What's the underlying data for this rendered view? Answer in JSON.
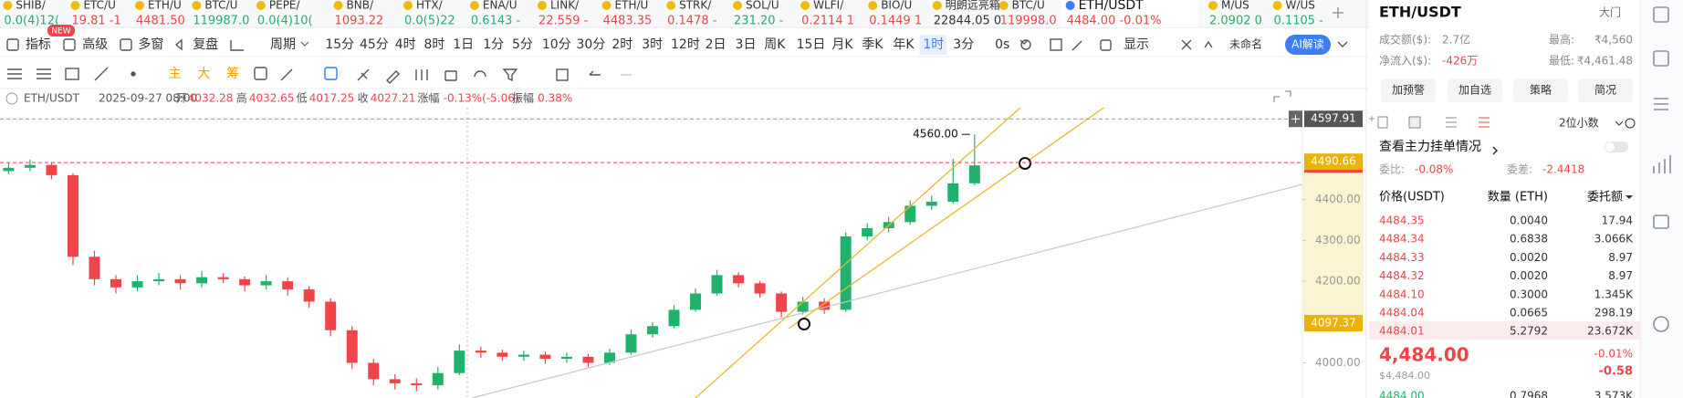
{
  "ticker": [
    {
      "name": "SHIB/",
      "price": "0.0(4)12(",
      "color": "#20b26c"
    },
    {
      "name": "ETC/U",
      "price": "19.81 -1",
      "color": "#ef454a"
    },
    {
      "name": "ETH/U",
      "price": "4481.50",
      "color": "#ef454a"
    },
    {
      "name": "BTC/U",
      "price": "119987.0",
      "color": "#20b26c"
    },
    {
      "name": "PEPE/",
      "price": "0.0(4)10(",
      "color": "#20b26c"
    },
    {
      "name": "BNB/",
      "price": "1093.22",
      "color": "#ef454a"
    },
    {
      "name": "HTX/",
      "price": "0.0(5)22",
      "color": "#20b26c"
    },
    {
      "name": "ENA/U",
      "price": "0.6143 -",
      "color": "#20b26c"
    },
    {
      "name": "LINK/",
      "price": "22.559 -",
      "color": "#ef454a"
    },
    {
      "name": "ETH/U",
      "price": "4483.35",
      "color": "#ef454a"
    },
    {
      "name": "STRK/",
      "price": "0.1478 -",
      "color": "#ef454a"
    },
    {
      "name": "SOL/U",
      "price": "231.20 -",
      "color": "#20b26c"
    },
    {
      "name": "WLFI/",
      "price": "0.2114 1",
      "color": "#ef454a"
    },
    {
      "name": "BIO/U",
      "price": "0.1449 1",
      "color": "#ef454a"
    },
    {
      "name": "明朗远亮箱",
      "price": "22844.05 0",
      "color": "#333333"
    },
    {
      "name": "BTC/U",
      "price": "119998.0",
      "color": "#ef454a"
    },
    {
      "name": "ETH/USDT",
      "price": "4484.00 -0.01%",
      "color": "#ef454a"
    },
    {
      "name": "M/US",
      "price": "2.0902 0",
      "color": "#20b26c"
    },
    {
      "name": "W/US",
      "price": "0.1105 -",
      "color": "#20b26c"
    }
  ],
  "ticker_active": 16,
  "ticker_badge": "NEW",
  "toolbar": {
    "tools": [
      "指标",
      "高级",
      "多窗",
      "复盘"
    ],
    "period_menu": "周期",
    "periods": [
      "15分",
      "45分",
      "4时",
      "8时",
      "1日",
      "1分",
      "5分",
      "10分",
      "30分",
      "2时",
      "3时",
      "12时",
      "2日",
      "3日",
      "周K",
      "15日",
      "月K",
      "季K",
      "年K",
      "1时",
      "3分",
      "0s"
    ],
    "active_period": 19,
    "display": "显示",
    "layout_name": "未命名",
    "ai": "AI解读"
  },
  "draw_tools": [
    "主",
    "大",
    "筹"
  ],
  "info": {
    "symbol": "ETH/USDT",
    "time": "2025-09-27 08:00",
    "fields": [
      {
        "label": "开",
        "value": "4032.28"
      },
      {
        "label": "高",
        "value": "4032.65"
      },
      {
        "label": "低",
        "value": "4017.25"
      },
      {
        "label": "收",
        "value": "4027.21"
      },
      {
        "label": "涨幅",
        "value": "-0.13%(-5.06)"
      },
      {
        "label": "振幅",
        "value": "0.38%"
      }
    ]
  },
  "chart": {
    "type": "candlestick",
    "ylim": [
      3930,
      4640
    ],
    "yticks": [
      {
        "value": 4000,
        "label": "4000.00"
      },
      {
        "value": 4200,
        "label": "4200.00"
      },
      {
        "value": 4300,
        "label": "4300.00"
      },
      {
        "value": 4400,
        "label": "4400.00"
      }
    ],
    "up_color": "#20b26c",
    "down_color": "#ef454a",
    "candles": {
      "open": [
        4470,
        4478,
        4485,
        4460,
        4260,
        4205,
        4185,
        4200,
        4205,
        4195,
        4210,
        4205,
        4190,
        4200,
        4180,
        4150,
        4080,
        4000,
        3960,
        3950,
        3945,
        3975,
        4030,
        4025,
        4015,
        4020,
        4010,
        4015,
        4000,
        4025,
        4070,
        4090,
        4130,
        4170,
        4215,
        4195,
        4170,
        4125,
        4150,
        4130,
        4310,
        4330,
        4345,
        4385,
        4395,
        4440
      ],
      "high": [
        4490,
        4498,
        4492,
        4465,
        4275,
        4215,
        4215,
        4220,
        4215,
        4225,
        4220,
        4212,
        4215,
        4210,
        4188,
        4158,
        4090,
        4010,
        3972,
        3962,
        3990,
        4045,
        4040,
        4032,
        4030,
        4028,
        4025,
        4022,
        4035,
        4082,
        4100,
        4142,
        4182,
        4228,
        4222,
        4200,
        4175,
        4162,
        4158,
        4320,
        4342,
        4358,
        4398,
        4410,
        4500,
        4560
      ],
      "low": [
        4462,
        4470,
        4450,
        4240,
        4190,
        4170,
        4175,
        4190,
        4180,
        4185,
        4195,
        4175,
        4180,
        4165,
        4135,
        4065,
        3985,
        3945,
        3935,
        3930,
        3935,
        3970,
        4012,
        4005,
        4005,
        3998,
        4000,
        3990,
        3995,
        4020,
        4062,
        4085,
        4125,
        4165,
        4185,
        4160,
        4112,
        4118,
        4120,
        4125,
        4300,
        4320,
        4338,
        4375,
        4390,
        4435
      ],
      "close": [
        4478,
        4485,
        4460,
        4260,
        4205,
        4185,
        4200,
        4205,
        4195,
        4210,
        4205,
        4190,
        4200,
        4180,
        4150,
        4080,
        4000,
        3960,
        3950,
        3945,
        3975,
        4030,
        4025,
        4015,
        4020,
        4010,
        4015,
        4000,
        4025,
        4070,
        4090,
        4130,
        4170,
        4215,
        4195,
        4170,
        4125,
        4150,
        4130,
        4310,
        4330,
        4345,
        4385,
        4395,
        4440,
        4484
      ]
    },
    "high_marker": {
      "value": 4560,
      "label": "4560.00"
    },
    "alert_price": 4597.91,
    "last_price": 4490.66,
    "range_low": 4097.37
  },
  "panel": {
    "symbol": "ETH/USDT",
    "entry": "大门",
    "stats": [
      {
        "label": "成交额($):",
        "value": "2.7亿"
      },
      {
        "label": "最高:",
        "value": "₹4,560"
      },
      {
        "label": "净流入($):",
        "value": "-426万"
      },
      {
        "label": "最低:",
        "value": "₹4,461.48"
      }
    ],
    "buttons": [
      "加预警",
      "加自选",
      "策略",
      "简况"
    ],
    "decimals": "2位小数",
    "main_orders": "查看主力挂单情况",
    "ratio": {
      "label": "委比:",
      "value": "-0.08%"
    },
    "diff": {
      "label": "委差:",
      "value": "-2.4418"
    },
    "headers": [
      "价格(USDT)",
      "数量 (ETH)",
      "委托额"
    ],
    "asks": [
      [
        "4484.35",
        "0.0040",
        "17.94"
      ],
      [
        "4484.34",
        "0.6838",
        "3.066K"
      ],
      [
        "4484.33",
        "0.0020",
        "8.97"
      ],
      [
        "4484.32",
        "0.0020",
        "8.97"
      ],
      [
        "4484.10",
        "0.3000",
        "1.345K"
      ],
      [
        "4484.04",
        "0.0665",
        "298.19"
      ],
      [
        "4484.01",
        "5.2792",
        "23.672K"
      ]
    ],
    "last_price": "4,484.00",
    "change_pct": "-0.01%",
    "usd_price": "$4,484.00",
    "change": "-0.58",
    "bids": [
      [
        "4484.00",
        "0.7968",
        "3.573K"
      ]
    ]
  }
}
